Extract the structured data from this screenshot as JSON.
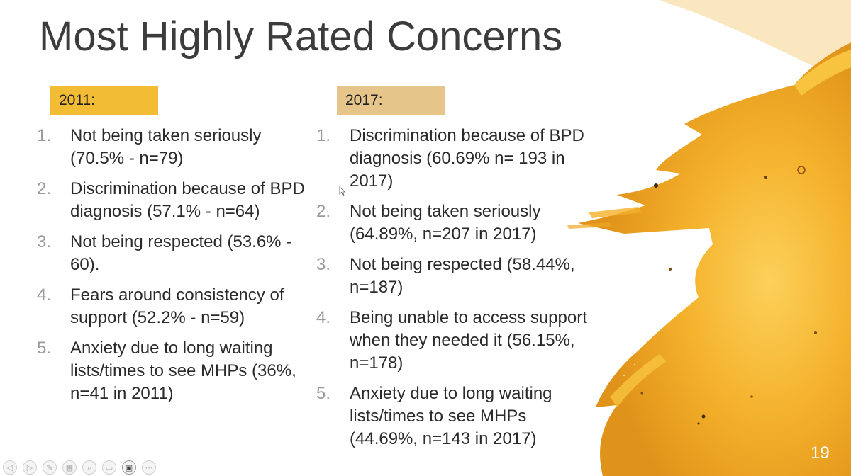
{
  "slide": {
    "title": "Most Highly Rated Concerns",
    "page_number": "19"
  },
  "col_2011": {
    "label": "2011:",
    "items": [
      {
        "num": "1.",
        "text": "Not being taken seriously (70.5% - n=79)"
      },
      {
        "num": "2.",
        "text": "Discrimination because of BPD diagnosis (57.1% - n=64)"
      },
      {
        "num": "3.",
        "text": "Not being respected (53.6% - 60)."
      },
      {
        "num": "4.",
        "text": "Fears around consistency of support (52.2% - n=59)"
      },
      {
        "num": "5.",
        "text": "Anxiety due to long waiting lists/times to see MHPs (36%, n=41 in 2011)"
      }
    ]
  },
  "col_2017": {
    "label": "2017:",
    "items": [
      {
        "num": "1.",
        "text": "Discrimination because of BPD diagnosis (60.69% n= 193 in 2017)"
      },
      {
        "num": "2.",
        "text": "Not being taken seriously (64.89%, n=207 in 2017)"
      },
      {
        "num": "3.",
        "text": "Not being respected (58.44%, n=187)"
      },
      {
        "num": "4.",
        "text": "Being unable to access support when they needed it (56.15%, n=178)"
      },
      {
        "num": "5.",
        "text": "Anxiety due to long waiting lists/times to see MHPs (44.69%, n=143 in 2017)"
      }
    ]
  },
  "colors": {
    "label_2011": "#f2bd34",
    "label_2017": "#e6c58a",
    "paint_main": "#f4b02a",
    "paint_light": "#fcd15a",
    "paint_dark": "#e0931a"
  },
  "toolbar": {
    "buttons": [
      {
        "icon": "prev-icon",
        "glyph": "◁"
      },
      {
        "icon": "next-icon",
        "glyph": "▷"
      },
      {
        "icon": "pen-icon",
        "glyph": "✎"
      },
      {
        "icon": "slides-icon",
        "glyph": "▦"
      },
      {
        "icon": "zoom-icon",
        "glyph": "⌕"
      },
      {
        "icon": "subtitles-icon",
        "glyph": "▭"
      },
      {
        "icon": "camera-icon",
        "glyph": "▣"
      },
      {
        "icon": "more-icon",
        "glyph": "⋯"
      }
    ]
  }
}
